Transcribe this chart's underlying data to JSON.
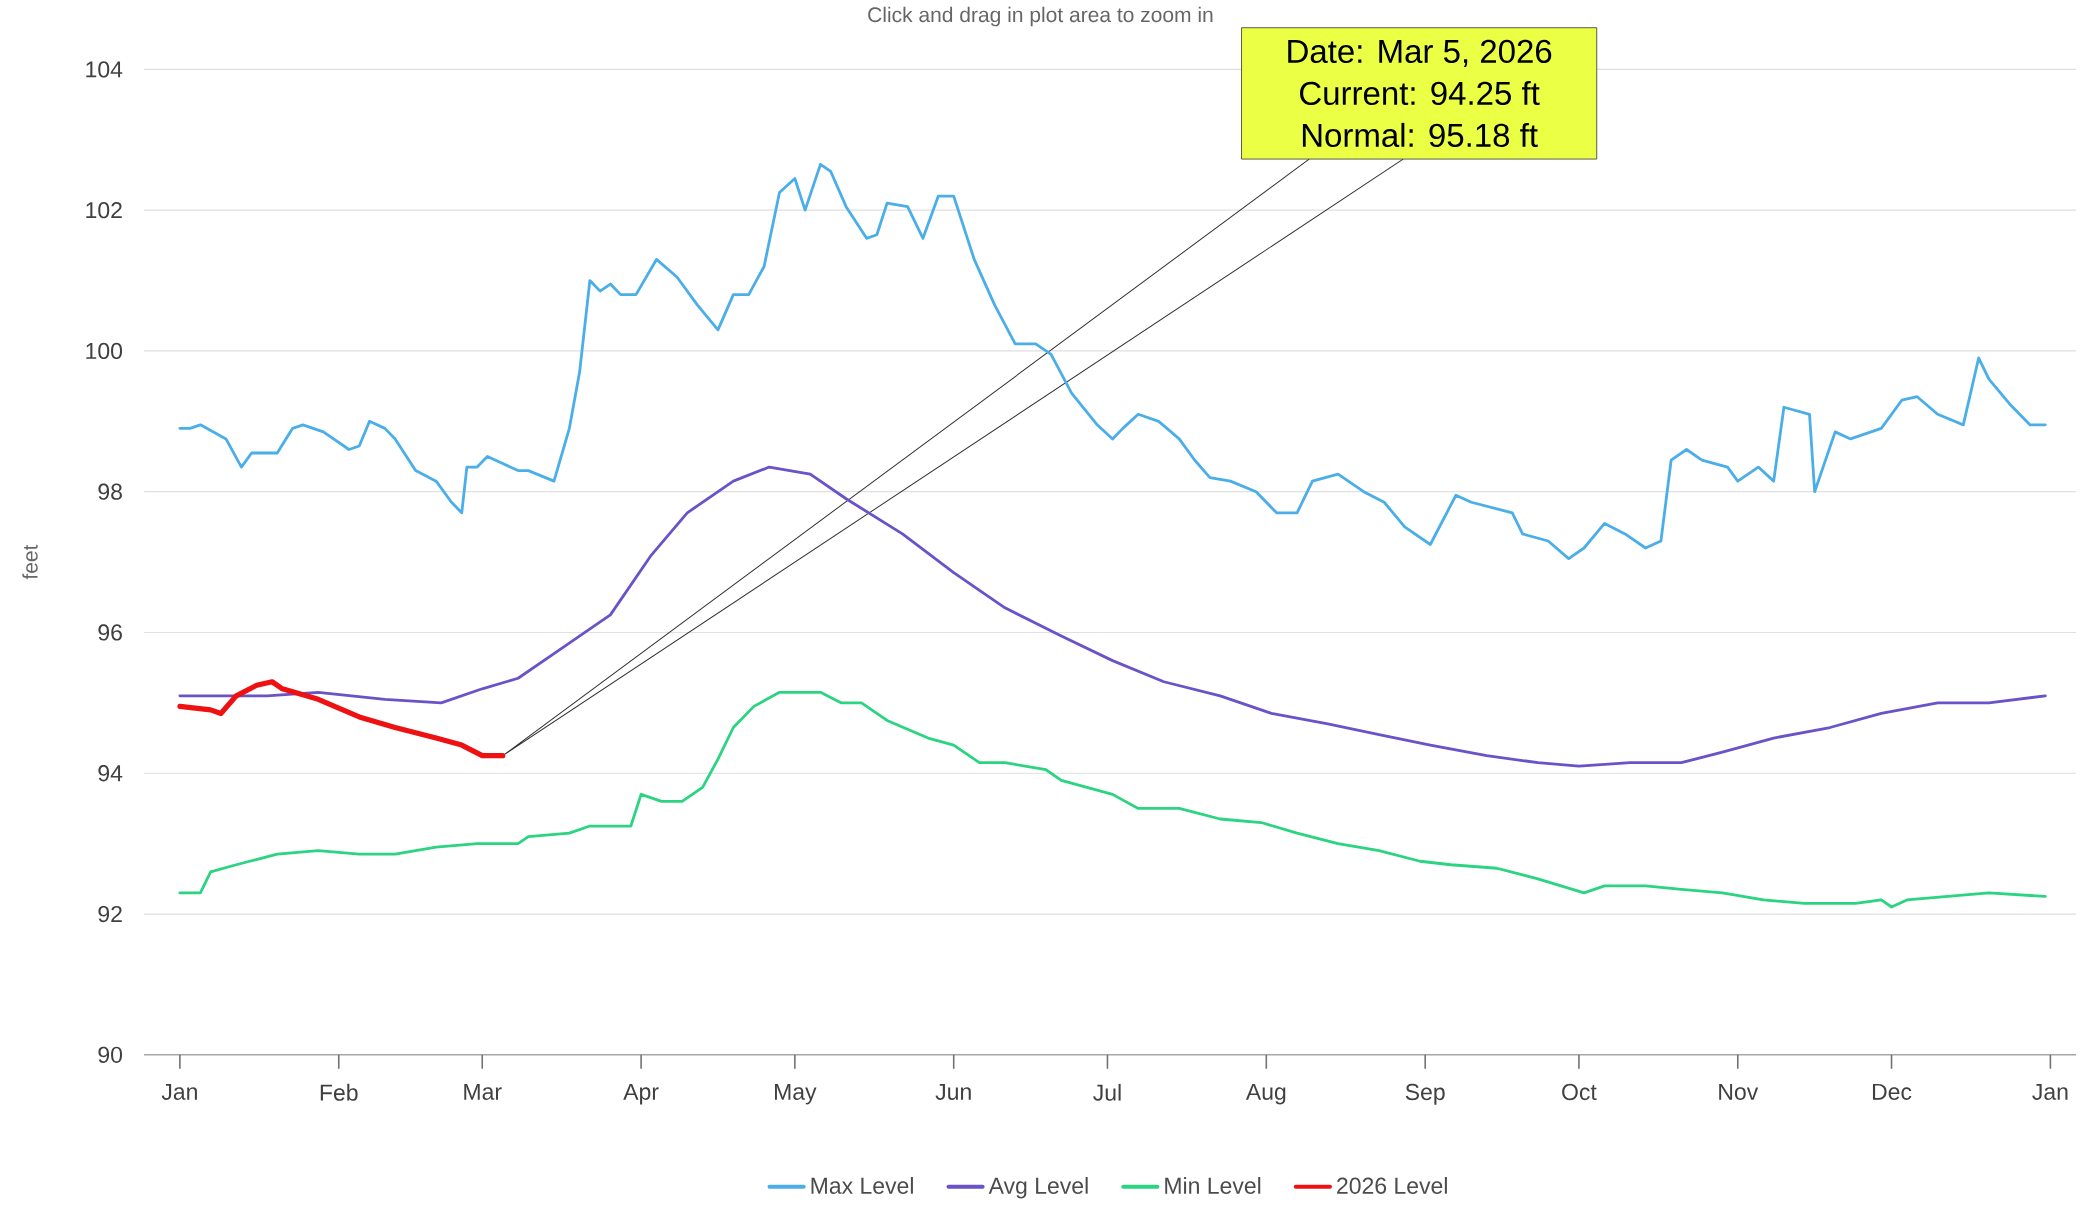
{
  "chart_data": {
    "type": "line",
    "title": "Click and drag in plot area to zoom in",
    "ylabel": "feet",
    "xlim": [
      "2025-12-25",
      "2027-01-06"
    ],
    "ylim": [
      90,
      104
    ],
    "xticks": [
      {
        "value": "2026-01-01",
        "label": "Jan"
      },
      {
        "value": "2026-02-01",
        "label": "Feb"
      },
      {
        "value": "2026-03-01",
        "label": "Mar"
      },
      {
        "value": "2026-04-01",
        "label": "Apr"
      },
      {
        "value": "2026-05-01",
        "label": "May"
      },
      {
        "value": "2026-06-01",
        "label": "Jun"
      },
      {
        "value": "2026-07-01",
        "label": "Jul"
      },
      {
        "value": "2026-08-01",
        "label": "Aug"
      },
      {
        "value": "2026-09-01",
        "label": "Sep"
      },
      {
        "value": "2026-10-01",
        "label": "Oct"
      },
      {
        "value": "2026-11-01",
        "label": "Nov"
      },
      {
        "value": "2026-12-01",
        "label": "Dec"
      },
      {
        "value": "2027-01-01",
        "label": "Jan"
      }
    ],
    "yticks": [
      90,
      92,
      94,
      96,
      98,
      100,
      102,
      104
    ],
    "grid": "y",
    "legend": "bottom",
    "annotations": [
      "Date: Mar 5, 2026",
      "Current: 94.25 ft",
      "Normal: 95.18 ft"
    ],
    "series": [
      {
        "name": "Max Level",
        "color": "#4aaee8",
        "x": [
          "2026-01-01",
          "2026-01-03",
          "2026-01-05",
          "2026-01-10",
          "2026-01-13",
          "2026-01-15",
          "2026-01-20",
          "2026-01-23",
          "2026-01-25",
          "2026-01-29",
          "2026-02-03",
          "2026-02-05",
          "2026-02-07",
          "2026-02-10",
          "2026-02-12",
          "2026-02-16",
          "2026-02-20",
          "2026-02-23",
          "2026-02-25",
          "2026-02-26",
          "2026-02-28",
          "2026-03-02",
          "2026-03-05",
          "2026-03-08",
          "2026-03-10",
          "2026-03-15",
          "2026-03-18",
          "2026-03-20",
          "2026-03-22",
          "2026-03-24",
          "2026-03-26",
          "2026-03-28",
          "2026-03-31",
          "2026-04-04",
          "2026-04-08",
          "2026-04-12",
          "2026-04-16",
          "2026-04-19",
          "2026-04-22",
          "2026-04-25",
          "2026-04-28",
          "2026-05-01",
          "2026-05-03",
          "2026-05-06",
          "2026-05-08",
          "2026-05-11",
          "2026-05-15",
          "2026-05-17",
          "2026-05-19",
          "2026-05-23",
          "2026-05-26",
          "2026-05-29",
          "2026-06-01",
          "2026-06-05",
          "2026-06-09",
          "2026-06-13",
          "2026-06-17",
          "2026-06-20",
          "2026-06-24",
          "2026-06-29",
          "2026-07-02",
          "2026-07-04",
          "2026-07-07",
          "2026-07-11",
          "2026-07-15",
          "2026-07-18",
          "2026-07-21",
          "2026-07-25",
          "2026-07-30",
          "2026-08-03",
          "2026-08-07",
          "2026-08-10",
          "2026-08-15",
          "2026-08-20",
          "2026-08-24",
          "2026-08-28",
          "2026-09-02",
          "2026-09-07",
          "2026-09-10",
          "2026-09-18",
          "2026-09-20",
          "2026-09-25",
          "2026-09-29",
          "2026-10-02",
          "2026-10-06",
          "2026-10-10",
          "2026-10-14",
          "2026-10-17",
          "2026-10-19",
          "2026-10-22",
          "2026-10-25",
          "2026-10-30",
          "2026-11-01",
          "2026-11-05",
          "2026-11-08",
          "2026-11-10",
          "2026-11-15",
          "2026-11-16",
          "2026-11-20",
          "2026-11-23",
          "2026-11-29",
          "2026-12-03",
          "2026-12-06",
          "2026-12-10",
          "2026-12-15",
          "2026-12-18",
          "2026-12-20",
          "2026-12-24",
          "2026-12-28",
          "2026-12-31"
        ],
        "values": [
          98.9,
          98.9,
          98.95,
          98.75,
          98.35,
          98.55,
          98.55,
          98.9,
          98.95,
          98.85,
          98.6,
          98.65,
          99.0,
          98.9,
          98.75,
          98.3,
          98.15,
          97.85,
          97.7,
          98.35,
          98.35,
          98.5,
          98.4,
          98.3,
          98.3,
          98.15,
          98.9,
          99.7,
          101.0,
          100.85,
          100.95,
          100.8,
          100.8,
          101.3,
          101.05,
          100.65,
          100.3,
          100.8,
          100.8,
          101.2,
          102.25,
          102.45,
          102.0,
          102.65,
          102.55,
          102.05,
          101.6,
          101.65,
          102.1,
          102.05,
          101.6,
          102.2,
          102.2,
          101.3,
          100.65,
          100.1,
          100.1,
          99.95,
          99.4,
          98.95,
          98.75,
          98.9,
          99.1,
          99.0,
          98.75,
          98.45,
          98.2,
          98.15,
          98.0,
          97.7,
          97.7,
          98.15,
          98.25,
          98.0,
          97.85,
          97.5,
          97.25,
          97.95,
          97.85,
          97.7,
          97.4,
          97.3,
          97.05,
          97.2,
          97.55,
          97.4,
          97.2,
          97.3,
          98.45,
          98.6,
          98.45,
          98.35,
          98.15,
          98.35,
          98.15,
          99.2,
          99.1,
          98.0,
          98.85,
          98.75,
          98.9,
          99.3,
          99.35,
          99.1,
          98.95,
          99.9,
          99.6,
          99.25,
          98.95,
          98.95
        ]
      },
      {
        "name": "Avg Level",
        "color": "#6a52c8",
        "x": [
          "2026-01-01",
          "2026-01-18",
          "2026-01-28",
          "2026-02-10",
          "2026-02-21",
          "2026-03-01",
          "2026-03-08",
          "2026-03-15",
          "2026-03-26",
          "2026-04-03",
          "2026-04-10",
          "2026-04-19",
          "2026-04-26",
          "2026-05-04",
          "2026-05-11",
          "2026-05-22",
          "2026-06-01",
          "2026-06-11",
          "2026-06-22",
          "2026-07-02",
          "2026-07-12",
          "2026-07-23",
          "2026-08-02",
          "2026-08-13",
          "2026-08-23",
          "2026-09-02",
          "2026-09-13",
          "2026-09-23",
          "2026-10-01",
          "2026-10-11",
          "2026-10-21",
          "2026-10-29",
          "2026-11-08",
          "2026-11-19",
          "2026-11-29",
          "2026-12-10",
          "2026-12-20",
          "2026-12-31"
        ],
        "values": [
          95.1,
          95.1,
          95.15,
          95.05,
          95.0,
          95.2,
          95.35,
          95.7,
          96.25,
          97.1,
          97.7,
          98.15,
          98.35,
          98.25,
          97.9,
          97.4,
          96.85,
          96.35,
          95.95,
          95.6,
          95.3,
          95.1,
          94.85,
          94.7,
          94.55,
          94.4,
          94.25,
          94.15,
          94.1,
          94.15,
          94.15,
          94.3,
          94.5,
          94.65,
          94.85,
          95.0,
          95.0,
          95.1
        ]
      },
      {
        "name": "Min Level",
        "color": "#2bd480",
        "x": [
          "2026-01-01",
          "2026-01-05",
          "2026-01-07",
          "2026-01-12",
          "2026-01-20",
          "2026-01-28",
          "2026-02-05",
          "2026-02-12",
          "2026-02-20",
          "2026-02-28",
          "2026-03-08",
          "2026-03-10",
          "2026-03-18",
          "2026-03-22",
          "2026-03-30",
          "2026-04-01",
          "2026-04-05",
          "2026-04-09",
          "2026-04-13",
          "2026-04-16",
          "2026-04-19",
          "2026-04-23",
          "2026-04-28",
          "2026-05-06",
          "2026-05-10",
          "2026-05-14",
          "2026-05-19",
          "2026-05-27",
          "2026-06-01",
          "2026-06-06",
          "2026-06-11",
          "2026-06-19",
          "2026-06-22",
          "2026-06-27",
          "2026-07-02",
          "2026-07-07",
          "2026-07-15",
          "2026-07-23",
          "2026-07-31",
          "2026-08-07",
          "2026-08-15",
          "2026-08-23",
          "2026-08-31",
          "2026-09-06",
          "2026-09-15",
          "2026-09-23",
          "2026-10-02",
          "2026-10-06",
          "2026-10-14",
          "2026-10-21",
          "2026-10-29",
          "2026-11-06",
          "2026-11-14",
          "2026-11-24",
          "2026-11-29",
          "2026-12-01",
          "2026-12-04",
          "2026-12-12",
          "2026-12-20",
          "2026-12-31"
        ],
        "values": [
          92.3,
          92.3,
          92.6,
          92.7,
          92.85,
          92.9,
          92.85,
          92.85,
          92.95,
          93.0,
          93.0,
          93.1,
          93.15,
          93.25,
          93.25,
          93.7,
          93.6,
          93.6,
          93.8,
          94.2,
          94.65,
          94.95,
          95.15,
          95.15,
          95.0,
          95.0,
          94.75,
          94.5,
          94.4,
          94.15,
          94.15,
          94.05,
          93.9,
          93.8,
          93.7,
          93.5,
          93.5,
          93.35,
          93.3,
          93.15,
          93.0,
          92.9,
          92.75,
          92.7,
          92.65,
          92.5,
          92.3,
          92.4,
          92.4,
          92.35,
          92.3,
          92.2,
          92.15,
          92.15,
          92.2,
          92.1,
          92.2,
          92.25,
          92.3,
          92.25
        ]
      },
      {
        "name": "2026 Level",
        "color": "#ee1111",
        "x": [
          "2026-01-01",
          "2026-01-07",
          "2026-01-09",
          "2026-01-12",
          "2026-01-16",
          "2026-01-19",
          "2026-01-21",
          "2026-01-28",
          "2026-02-05",
          "2026-02-12",
          "2026-02-20",
          "2026-02-25",
          "2026-03-01",
          "2026-03-05"
        ],
        "values": [
          94.95,
          94.9,
          94.85,
          95.1,
          95.25,
          95.3,
          95.2,
          95.05,
          94.8,
          94.65,
          94.5,
          94.4,
          94.25,
          94.25
        ]
      }
    ]
  }
}
